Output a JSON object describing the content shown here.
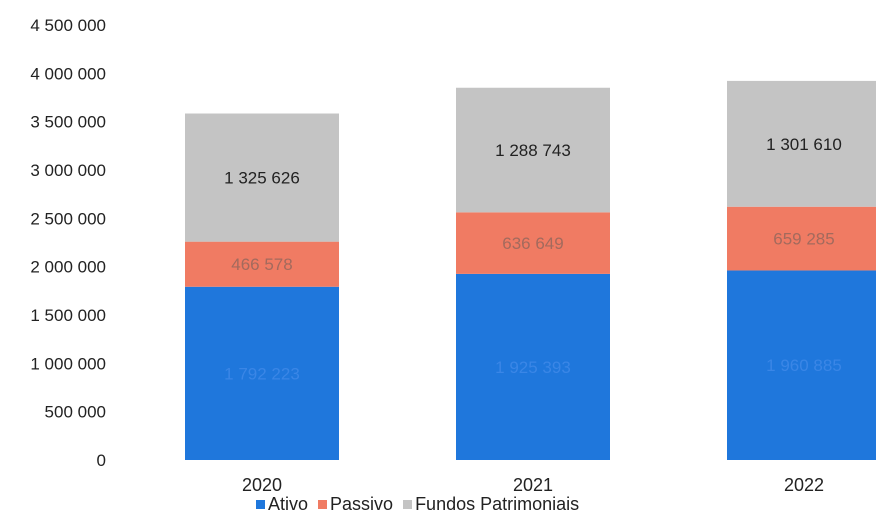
{
  "chart_data": {
    "type": "bar",
    "stacked": true,
    "categories": [
      "2020",
      "2021",
      "2022"
    ],
    "series": [
      {
        "name": "Ativo",
        "color": "#1f77dc",
        "values": [
          1792223,
          1925393,
          1960885
        ],
        "labels": [
          "1 792 223",
          "1 925 393",
          "1 960 885"
        ],
        "label_color": "#3a86e6"
      },
      {
        "name": "Passivo",
        "color": "#f07b63",
        "values": [
          466578,
          636649,
          659285
        ],
        "labels": [
          "466 578",
          "636 649",
          "659 285"
        ],
        "label_color": "#a36a5d"
      },
      {
        "name": "Fundos Patrimoniais",
        "color": "#c4c4c4",
        "values": [
          1325626,
          1288743,
          1301610
        ],
        "labels": [
          "1 325 626",
          "1 288 743",
          "1 301 610"
        ],
        "label_color": "#222222"
      }
    ],
    "ylim": [
      0,
      4500000
    ],
    "yticks": [
      0,
      500000,
      1000000,
      1500000,
      2000000,
      2500000,
      3000000,
      3500000,
      4000000,
      4500000
    ],
    "ytick_labels": [
      "0",
      "500 000",
      "1 000 000",
      "1 500 000",
      "2 000 000",
      "2 500 000",
      "3 000 000",
      "3 500 000",
      "4 000 000",
      "4 500 000"
    ],
    "grid": false,
    "legend": "bottom"
  }
}
